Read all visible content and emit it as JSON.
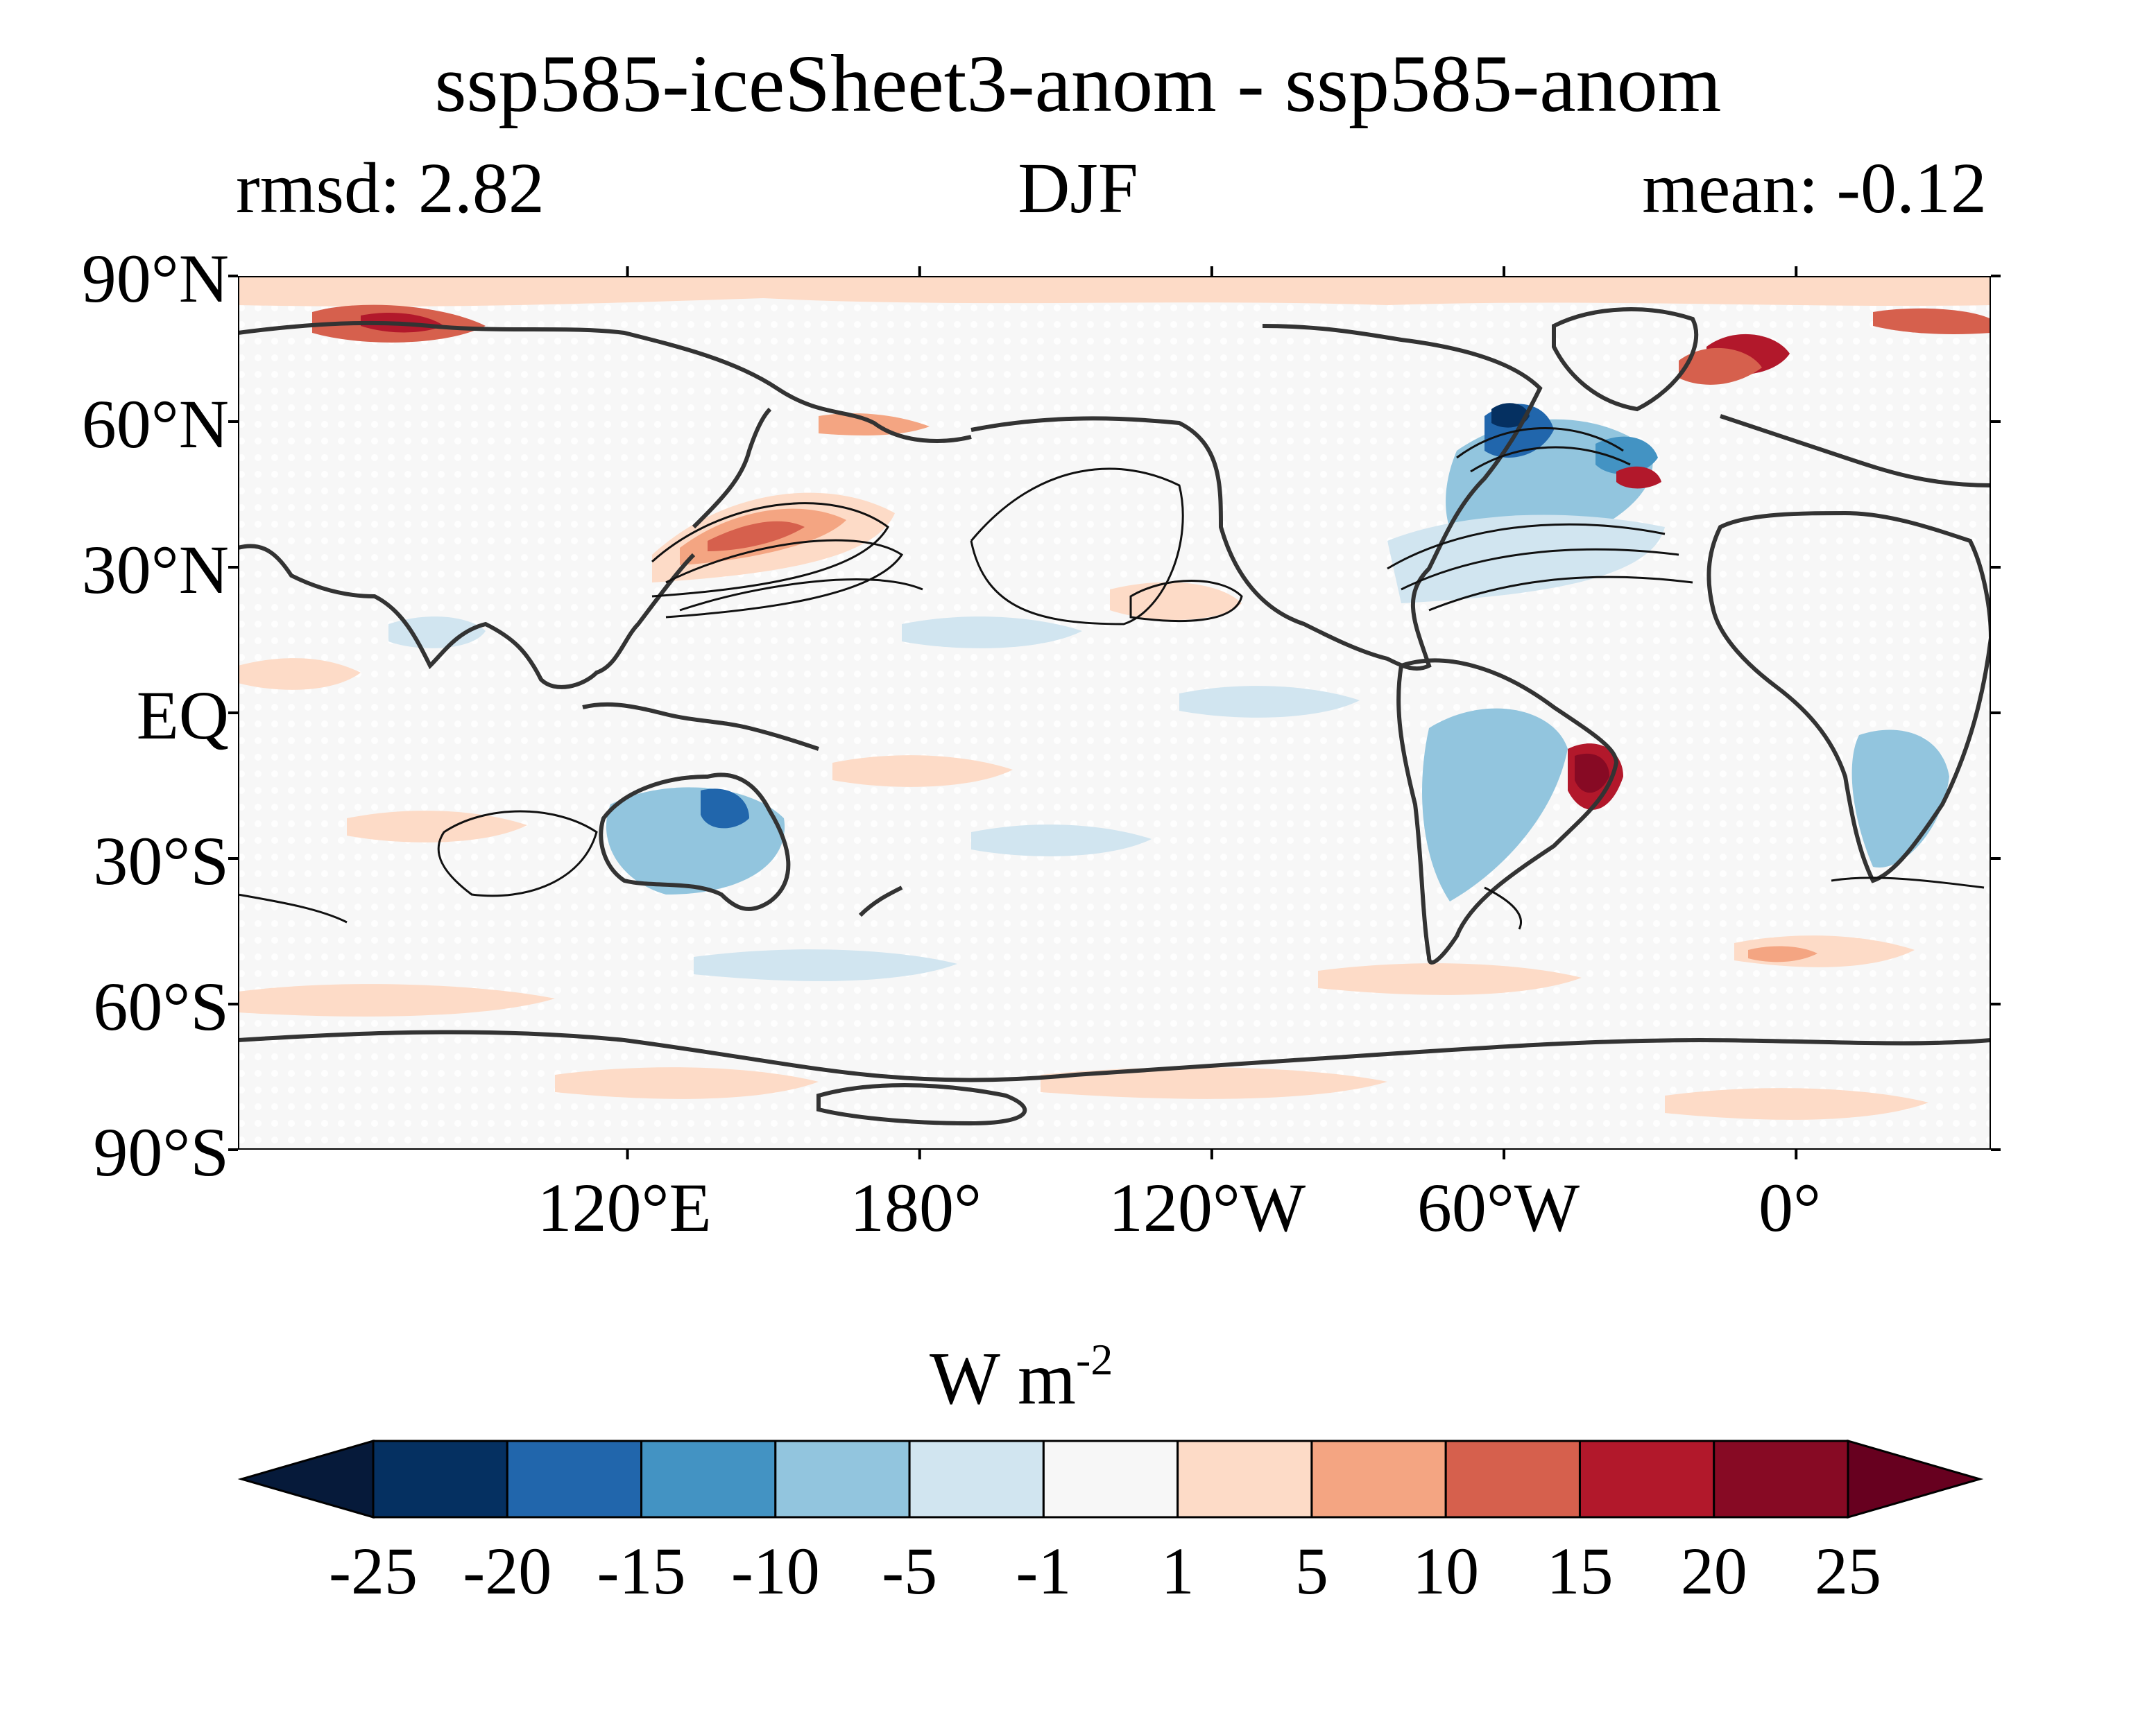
{
  "title": "ssp585-iceSheet3-anom - ssp585-anom",
  "subtitle_left": "rmsd: 2.82",
  "subtitle_center": "DJF",
  "subtitle_right": "mean: -0.12",
  "map": {
    "lat_labels": [
      "90°N",
      "60°N",
      "30°N",
      "EQ",
      "30°S",
      "60°S",
      "90°S"
    ],
    "lon_labels": [
      "120°E",
      "180°",
      "120°W",
      "60°W",
      "0°"
    ],
    "lon_range": [
      40,
      400
    ],
    "lat_range": [
      -90,
      90
    ],
    "central_longitude": 220,
    "ocean_fill_color": "#f7f7f7",
    "stipple_color": "#ffffff"
  },
  "colorbar": {
    "unit": "W m",
    "unit_exponent": "-2",
    "tick_labels": [
      "-25",
      "-20",
      "-15",
      "-10",
      "-5",
      "-1",
      "1",
      "5",
      "10",
      "15",
      "20",
      "25"
    ],
    "levels": [
      -25,
      -20,
      -15,
      -10,
      -5,
      -1,
      1,
      5,
      10,
      15,
      20,
      25
    ],
    "under_color": "#061a3a",
    "over_color": "#67001f",
    "colors": [
      "#053061",
      "#2166ac",
      "#4393c3",
      "#92c5de",
      "#d1e5f0",
      "#f7f7f7",
      "#fddbc7",
      "#f4a582",
      "#d6604d",
      "#b2182b",
      "#870a24"
    ]
  }
}
